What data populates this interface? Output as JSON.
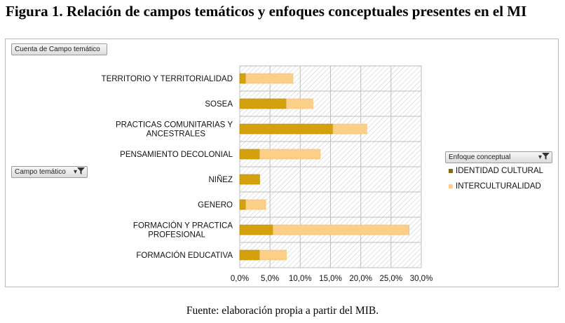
{
  "figure_title": "Figura 1. Relación de campos temáticos y enfoques conceptuales presentes en el MI",
  "source_note": "Fuente: elaboración propia a partir del MIB.",
  "pivot": {
    "value_field": "Cuenta de Campo temático",
    "row_field": "Campo temático",
    "legend_field": "Enfoque conceptual",
    "filter_icon": "filter-dropdown-icon"
  },
  "colors": {
    "identidad": "#d4a00c",
    "interculturalidad": "#fbcf88",
    "grid": "#bdbdbd",
    "hatch": "#cfcfcf"
  },
  "chart_data": {
    "type": "bar",
    "orientation": "horizontal",
    "stacked": true,
    "categories": [
      "TERRITORIO Y TERRITORIALIDAD",
      "SOSEA",
      "PRACTICAS COMUNITARIAS Y ANCESTRALES",
      "PENSAMIENTO DECOLONIAL",
      "NIÑEZ",
      "GENERO",
      "FORMACIÓN Y PRACTICA PROFESIONAL",
      "FORMACIÓN EDUCATIVA"
    ],
    "series": [
      {
        "name": "IDENTIDAD CULTURAL",
        "values": [
          1.0,
          7.7,
          15.4,
          3.3,
          3.3,
          1.0,
          5.5,
          3.3
        ]
      },
      {
        "name": "INTERCULTURALIDAD",
        "values": [
          7.8,
          4.4,
          5.6,
          10.0,
          0,
          3.3,
          22.5,
          4.4
        ]
      }
    ],
    "x_ticks": [
      "0,0%",
      "5,0%",
      "10,0%",
      "15,0%",
      "20,0%",
      "25,0%",
      "30,0%"
    ],
    "xlim": [
      0,
      30
    ],
    "grid": true,
    "legend_position": "right"
  }
}
